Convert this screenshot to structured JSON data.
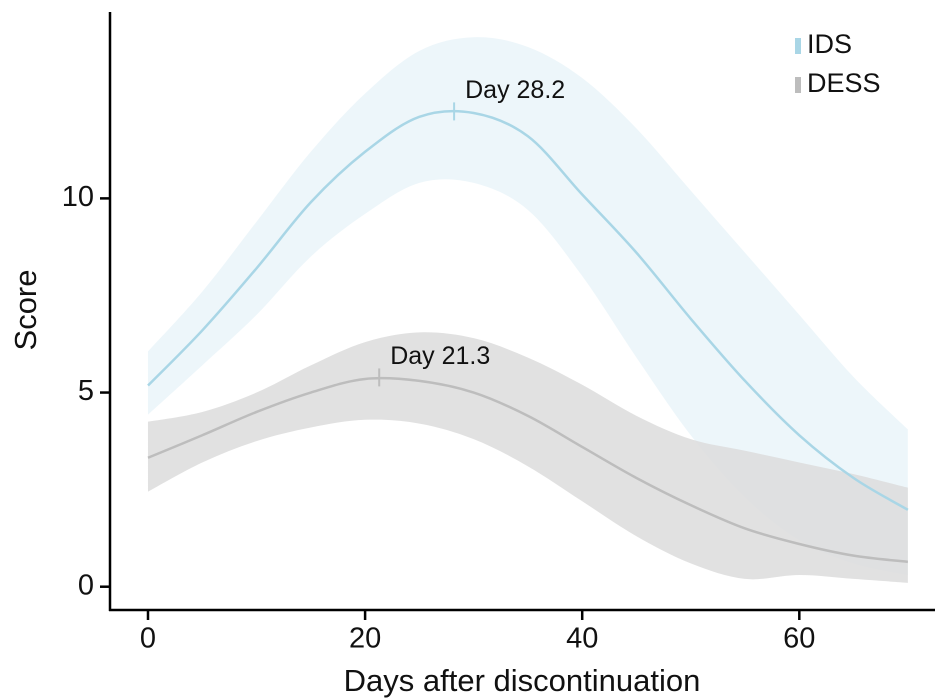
{
  "chart_data": {
    "type": "line",
    "x_label": "Days after discontinuation",
    "y_label": "Score",
    "x": [
      0,
      5,
      10,
      15,
      20,
      25,
      30,
      35,
      40,
      45,
      50,
      55,
      60,
      65,
      70
    ],
    "series": [
      {
        "name": "IDS",
        "color": "#a9d6e6",
        "band_color": "#eaf4f9",
        "values": [
          5.18,
          6.6,
          8.2,
          9.9,
          11.2,
          12.1,
          12.2,
          11.6,
          10.1,
          8.6,
          6.9,
          5.3,
          3.9,
          2.8,
          1.98
        ],
        "upper": [
          6.06,
          7.6,
          9.4,
          11.2,
          12.7,
          13.8,
          14.15,
          13.9,
          13.1,
          11.8,
          10.2,
          8.6,
          7.0,
          5.4,
          4.05
        ],
        "lower": [
          4.43,
          5.7,
          7.0,
          8.5,
          9.6,
          10.4,
          10.4,
          9.7,
          8.0,
          5.9,
          3.9,
          2.3,
          1.2,
          0.6,
          0.3
        ]
      },
      {
        "name": "DESS",
        "color": "#bdbdbd",
        "band_color": "#dcdcdc",
        "values": [
          3.32,
          3.9,
          4.5,
          5.0,
          5.35,
          5.3,
          5.0,
          4.4,
          3.6,
          2.8,
          2.1,
          1.5,
          1.1,
          0.8,
          0.64
        ],
        "upper": [
          4.25,
          4.5,
          5.0,
          5.7,
          6.3,
          6.55,
          6.4,
          5.9,
          5.2,
          4.4,
          3.8,
          3.5,
          3.2,
          2.9,
          2.55
        ],
        "lower": [
          2.45,
          3.2,
          3.75,
          4.1,
          4.3,
          4.2,
          3.8,
          3.1,
          2.2,
          1.3,
          0.6,
          0.2,
          0.3,
          0.2,
          0.1
        ]
      }
    ],
    "annotations": [
      {
        "text": "Day 28.2",
        "peak_x": 28.2,
        "peak_y": 12.24
      },
      {
        "text": "Day 21.3",
        "peak_x": 21.3,
        "peak_y": 5.39
      }
    ],
    "xlim": [
      -3.5,
      72.5
    ],
    "ylim": [
      -0.6,
      14.8
    ],
    "xticks": [
      0,
      20,
      40,
      60
    ],
    "yticks": [
      0,
      5,
      10
    ],
    "legend": "top-right"
  }
}
